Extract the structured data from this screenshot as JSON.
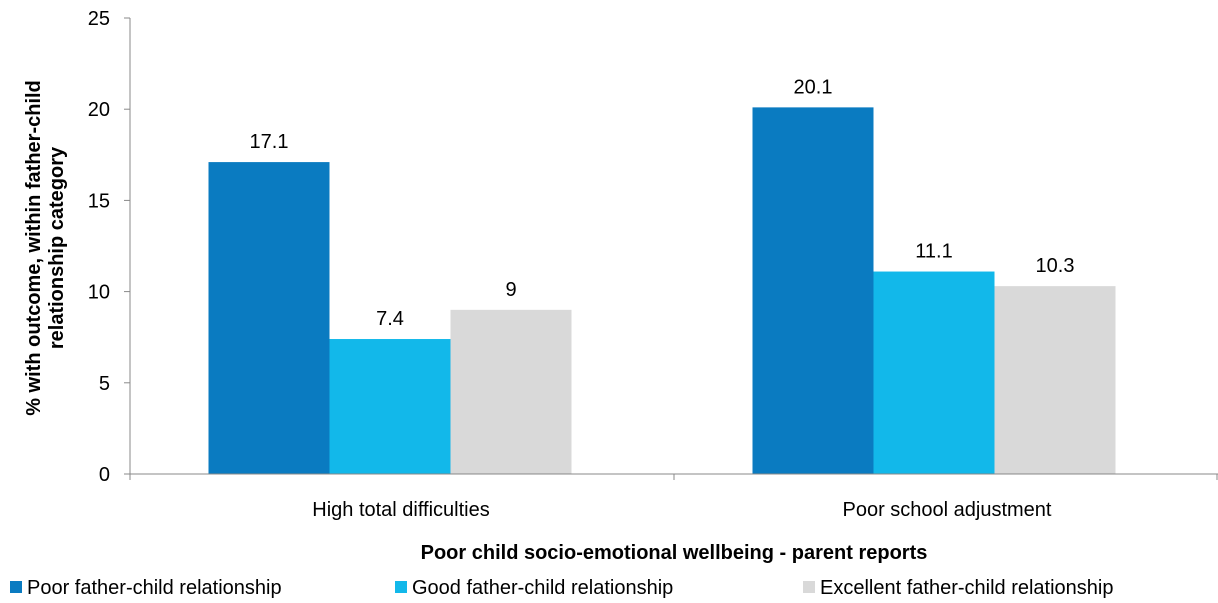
{
  "chart_data": {
    "type": "bar",
    "categories": [
      "High total difficulties",
      "Poor school adjustment"
    ],
    "series": [
      {
        "name": "Poor father-child relationship",
        "values": [
          17.1,
          20.1
        ],
        "color": "#0A7BC1"
      },
      {
        "name": "Good father-child relationship",
        "values": [
          7.4,
          11.1
        ],
        "color": "#12B8EA"
      },
      {
        "name": "Excellent father-child relationship",
        "values": [
          9,
          10.3
        ],
        "color": "#D9D9D9"
      }
    ],
    "data_labels": [
      [
        "17.1",
        "20.1"
      ],
      [
        "7.4",
        "11.1"
      ],
      [
        "9",
        "10.3"
      ]
    ],
    "xlabel": "Poor child socio-emotional wellbeing - parent reports",
    "ylabel_lines": [
      "% with outcome, within father-child",
      "relationship category"
    ],
    "ylim": [
      0,
      25
    ],
    "yticks": [
      "0",
      "5",
      "10",
      "15",
      "20",
      "25"
    ],
    "grid": false,
    "legend_position": "bottom"
  }
}
